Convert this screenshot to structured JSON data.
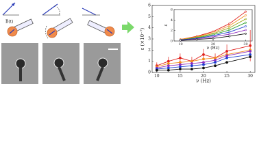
{
  "diagram": {
    "field_label": "B(t)"
  },
  "chart_data": [
    {
      "type": "line",
      "xlabel": "ν (Hz)",
      "ylabel": "ε (×10⁻⁷)",
      "xlim": [
        9,
        31
      ],
      "ylim": [
        0,
        6
      ],
      "xticks": [
        10,
        15,
        20,
        25,
        30
      ],
      "yticks": [
        0,
        1,
        2,
        3,
        4,
        5,
        6
      ],
      "x": [
        10,
        12.5,
        15,
        17.5,
        20,
        22.5,
        25,
        30
      ],
      "series": [
        {
          "color": "#e0201b",
          "values": [
            0.6,
            1.0,
            1.3,
            1.0,
            1.6,
            1.3,
            1.9,
            2.4
          ],
          "errors": [
            0.3,
            0.4,
            0.4,
            0.4,
            0.5,
            0.4,
            0.6,
            1.4
          ]
        },
        {
          "color": "#f28c1c",
          "values": [
            0.5,
            0.8,
            0.9,
            1.0,
            1.2,
            1.3,
            1.6,
            2.0
          ]
        },
        {
          "color": "#8e2dbd",
          "values": [
            0.4,
            0.6,
            0.7,
            0.8,
            0.9,
            1.1,
            1.5,
            1.9
          ]
        },
        {
          "color": "#1f3fd0",
          "values": [
            0.3,
            0.4,
            0.5,
            0.6,
            0.7,
            0.9,
            1.3,
            1.6
          ]
        },
        {
          "color": "#111111",
          "values": [
            0.2,
            0.2,
            0.3,
            0.3,
            0.4,
            0.6,
            0.9,
            1.4
          ]
        }
      ]
    },
    {
      "type": "line",
      "xlabel": "ν (Hz)",
      "ylabel": "ε",
      "xlim": [
        8,
        32
      ],
      "ylim": [
        0,
        6
      ],
      "xticks": [
        10,
        20,
        30
      ],
      "yticks": [
        0,
        2,
        4,
        6
      ],
      "x": [
        10,
        15,
        20,
        25,
        30
      ],
      "series": [
        {
          "color": "#e0201b",
          "values": [
            0.3,
            0.9,
            1.8,
            3.3,
            5.6
          ]
        },
        {
          "color": "#f28c1c",
          "values": [
            0.3,
            0.8,
            1.6,
            2.9,
            4.9
          ]
        },
        {
          "color": "#9aa81c",
          "values": [
            0.2,
            0.7,
            1.4,
            2.5,
            4.2
          ]
        },
        {
          "color": "#2ca02c",
          "values": [
            0.2,
            0.6,
            1.2,
            2.1,
            3.5
          ]
        },
        {
          "color": "#1f3fd0",
          "values": [
            0.2,
            0.5,
            1.0,
            1.7,
            2.8
          ]
        },
        {
          "color": "#8e2dbd",
          "values": [
            0.1,
            0.4,
            0.8,
            1.3,
            2.1
          ]
        },
        {
          "color": "#111111",
          "values": [
            0.1,
            0.3,
            0.5,
            0.9,
            1.4
          ]
        }
      ]
    }
  ]
}
